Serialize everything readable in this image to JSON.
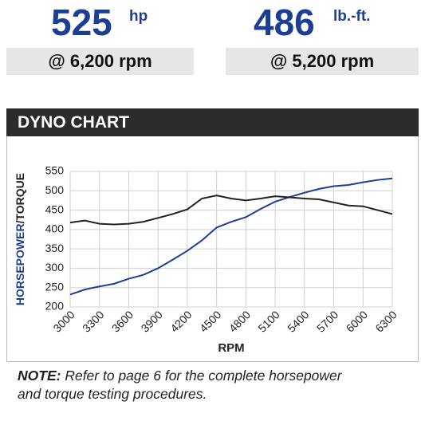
{
  "stats": [
    {
      "value": 525,
      "unit": "hp",
      "at": "@ 6,200 rpm"
    },
    {
      "value": 486,
      "unit": "lb.-ft.",
      "at": "@ 5,200 rpm"
    }
  ],
  "panel_title": "DYNO CHART",
  "note": {
    "label": "NOTE:",
    "text": "Refer to page 6 for the complete horsepower and torque testing procedures."
  },
  "chart_data": {
    "type": "line",
    "x_label": "RPM",
    "y_label": [
      "HORSEPOWER",
      "/TORQUE"
    ],
    "x": [
      3000,
      3150,
      3300,
      3450,
      3600,
      3750,
      3900,
      4050,
      4200,
      4350,
      4500,
      4650,
      4800,
      4950,
      5100,
      5250,
      5400,
      5550,
      5700,
      5850,
      6000,
      6150,
      6300
    ],
    "series": [
      {
        "color": "#1c3f94",
        "values": [
          232,
          245,
          253,
          260,
          273,
          283,
          300,
          322,
          345,
          372,
          405,
          420,
          432,
          453,
          472,
          484,
          495,
          505,
          512,
          515,
          522,
          528,
          532
        ]
      },
      {
        "color": "#222222",
        "values": [
          418,
          423,
          415,
          413,
          415,
          420,
          430,
          440,
          452,
          480,
          488,
          480,
          475,
          480,
          486,
          483,
          480,
          478,
          470,
          462,
          460,
          450,
          440
        ]
      }
    ],
    "xlim": [
      3000,
      6300
    ],
    "xticks": [
      3000,
      3300,
      3600,
      3900,
      4200,
      4500,
      4800,
      5100,
      5400,
      5700,
      6000,
      6300
    ],
    "ylim": [
      200,
      550
    ],
    "yticks": [
      200,
      250,
      300,
      350,
      400,
      450,
      500,
      550
    ],
    "grid": true
  }
}
